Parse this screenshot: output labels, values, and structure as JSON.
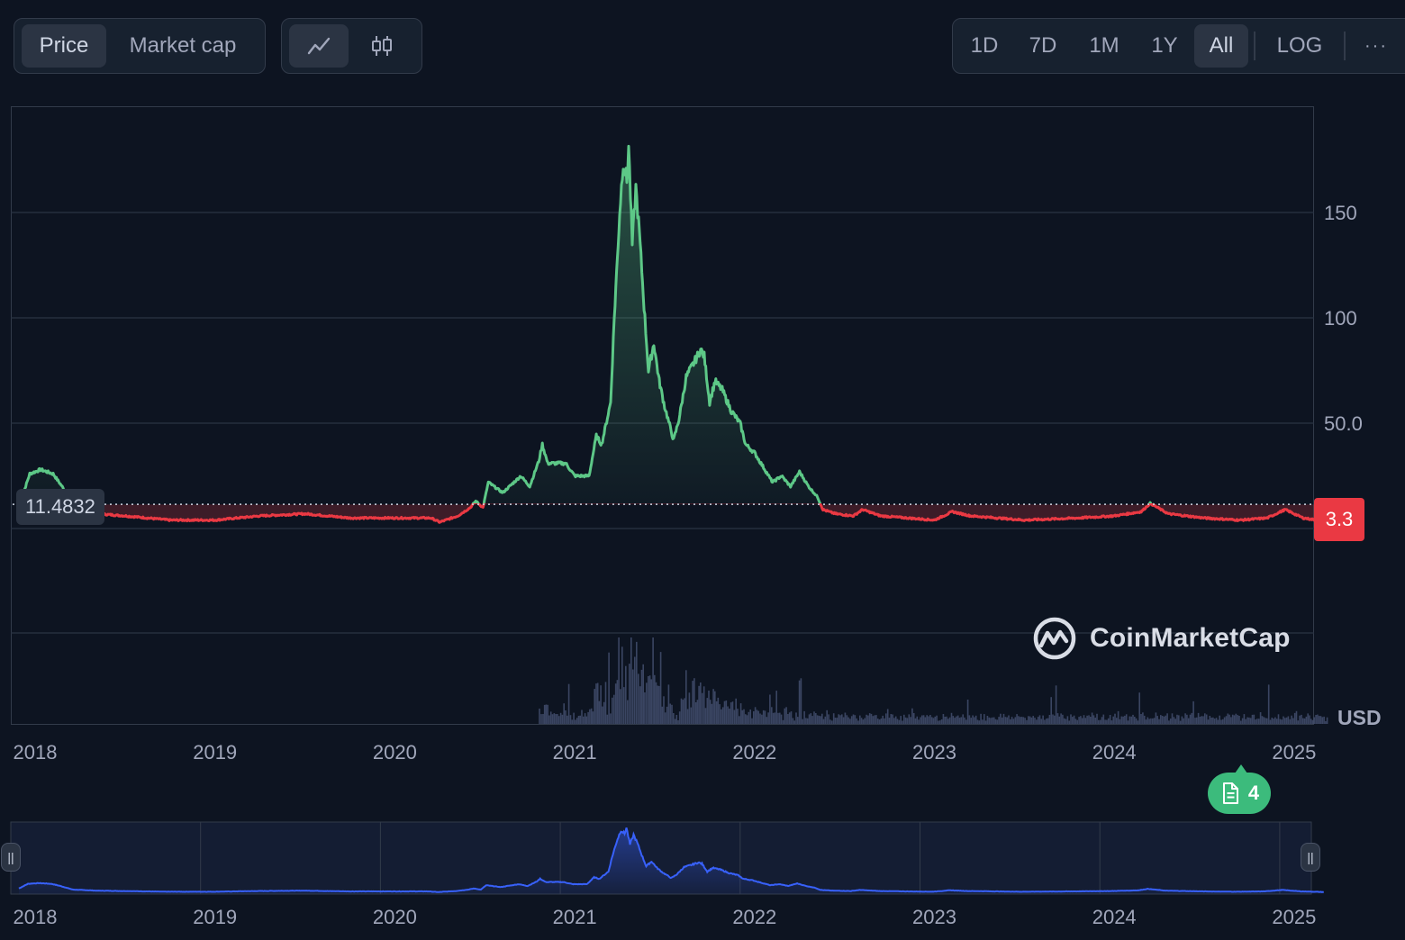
{
  "toolbar": {
    "metric_tabs": [
      {
        "label": "Price",
        "active": true
      },
      {
        "label": "Market cap",
        "active": false
      }
    ],
    "chart_type_icons": [
      "line-chart-icon",
      "candlestick-icon"
    ],
    "time_ranges": [
      {
        "label": "1D",
        "active": false
      },
      {
        "label": "7D",
        "active": false
      },
      {
        "label": "1M",
        "active": false
      },
      {
        "label": "1Y",
        "active": false
      },
      {
        "label": "All",
        "active": true
      }
    ],
    "log_label": "LOG",
    "more_label": "···"
  },
  "watermark": "CoinMarketCap",
  "hover_value": "11.4832",
  "current_price": "3.3",
  "currency": "USD",
  "news_badge": {
    "count": "4",
    "icon": "document-icon"
  },
  "colors": {
    "up": "#5dc887",
    "down": "#ea3943",
    "background": "#0d1421",
    "navigator": "#3861fb"
  },
  "chart_data": {
    "type": "line",
    "title": "",
    "xlabel": "",
    "ylabel": "USD",
    "y_ticks": [
      "150",
      "100",
      "50.0"
    ],
    "x_ticks": [
      "2018",
      "2019",
      "2020",
      "2021",
      "2022",
      "2023",
      "2024",
      "2025"
    ],
    "baseline": 11.4832,
    "ylim": [
      -50,
      200
    ],
    "grid": true,
    "series": [
      {
        "values": [
          {
            "x": 2017.92,
            "y": 13
          },
          {
            "x": 2017.97,
            "y": 26
          },
          {
            "x": 2018.03,
            "y": 28
          },
          {
            "x": 2018.1,
            "y": 26
          },
          {
            "x": 2018.15,
            "y": 20
          },
          {
            "x": 2018.22,
            "y": 10
          },
          {
            "x": 2018.35,
            "y": 7
          },
          {
            "x": 2018.5,
            "y": 6
          },
          {
            "x": 2018.75,
            "y": 4
          },
          {
            "x": 2019.0,
            "y": 4
          },
          {
            "x": 2019.25,
            "y": 6
          },
          {
            "x": 2019.5,
            "y": 7
          },
          {
            "x": 2019.75,
            "y": 5
          },
          {
            "x": 2020.0,
            "y": 5
          },
          {
            "x": 2020.2,
            "y": 5
          },
          {
            "x": 2020.25,
            "y": 3
          },
          {
            "x": 2020.35,
            "y": 6
          },
          {
            "x": 2020.42,
            "y": 10
          },
          {
            "x": 2020.45,
            "y": 13
          },
          {
            "x": 2020.49,
            "y": 10
          },
          {
            "x": 2020.52,
            "y": 22
          },
          {
            "x": 2020.6,
            "y": 17
          },
          {
            "x": 2020.7,
            "y": 25
          },
          {
            "x": 2020.75,
            "y": 20
          },
          {
            "x": 2020.8,
            "y": 32
          },
          {
            "x": 2020.82,
            "y": 40
          },
          {
            "x": 2020.85,
            "y": 31
          },
          {
            "x": 2020.95,
            "y": 31
          },
          {
            "x": 2021.0,
            "y": 25
          },
          {
            "x": 2021.08,
            "y": 25
          },
          {
            "x": 2021.12,
            "y": 44
          },
          {
            "x": 2021.15,
            "y": 40
          },
          {
            "x": 2021.2,
            "y": 60
          },
          {
            "x": 2021.22,
            "y": 100
          },
          {
            "x": 2021.25,
            "y": 150
          },
          {
            "x": 2021.27,
            "y": 175
          },
          {
            "x": 2021.29,
            "y": 165
          },
          {
            "x": 2021.3,
            "y": 182
          },
          {
            "x": 2021.32,
            "y": 135
          },
          {
            "x": 2021.34,
            "y": 162
          },
          {
            "x": 2021.36,
            "y": 140
          },
          {
            "x": 2021.39,
            "y": 100
          },
          {
            "x": 2021.41,
            "y": 75
          },
          {
            "x": 2021.44,
            "y": 88
          },
          {
            "x": 2021.47,
            "y": 70
          },
          {
            "x": 2021.5,
            "y": 58
          },
          {
            "x": 2021.55,
            "y": 42
          },
          {
            "x": 2021.58,
            "y": 52
          },
          {
            "x": 2021.62,
            "y": 72
          },
          {
            "x": 2021.67,
            "y": 80
          },
          {
            "x": 2021.7,
            "y": 85
          },
          {
            "x": 2021.72,
            "y": 82
          },
          {
            "x": 2021.75,
            "y": 60
          },
          {
            "x": 2021.78,
            "y": 70
          },
          {
            "x": 2021.82,
            "y": 66
          },
          {
            "x": 2021.87,
            "y": 56
          },
          {
            "x": 2021.92,
            "y": 50
          },
          {
            "x": 2021.95,
            "y": 40
          },
          {
            "x": 2022.0,
            "y": 36
          },
          {
            "x": 2022.05,
            "y": 29
          },
          {
            "x": 2022.1,
            "y": 22
          },
          {
            "x": 2022.15,
            "y": 25
          },
          {
            "x": 2022.2,
            "y": 20
          },
          {
            "x": 2022.25,
            "y": 27
          },
          {
            "x": 2022.3,
            "y": 20
          },
          {
            "x": 2022.35,
            "y": 15
          },
          {
            "x": 2022.38,
            "y": 9
          },
          {
            "x": 2022.45,
            "y": 7
          },
          {
            "x": 2022.55,
            "y": 6
          },
          {
            "x": 2022.6,
            "y": 9
          },
          {
            "x": 2022.7,
            "y": 6
          },
          {
            "x": 2022.85,
            "y": 5
          },
          {
            "x": 2023.0,
            "y": 4
          },
          {
            "x": 2023.1,
            "y": 8
          },
          {
            "x": 2023.2,
            "y": 6
          },
          {
            "x": 2023.5,
            "y": 4
          },
          {
            "x": 2023.8,
            "y": 5
          },
          {
            "x": 2024.0,
            "y": 6
          },
          {
            "x": 2024.15,
            "y": 8
          },
          {
            "x": 2024.2,
            "y": 12
          },
          {
            "x": 2024.3,
            "y": 7
          },
          {
            "x": 2024.5,
            "y": 5
          },
          {
            "x": 2024.7,
            "y": 4
          },
          {
            "x": 2024.85,
            "y": 5
          },
          {
            "x": 2024.95,
            "y": 9
          },
          {
            "x": 2025.05,
            "y": 5
          },
          {
            "x": 2025.18,
            "y": 3.3
          }
        ]
      }
    ]
  }
}
